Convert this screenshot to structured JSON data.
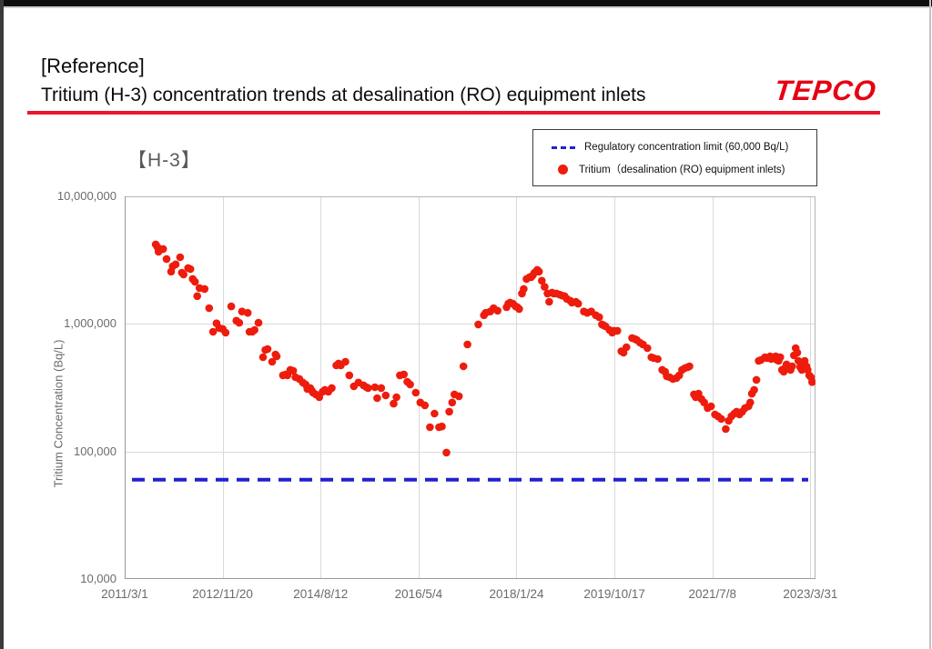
{
  "frame": {
    "top_bar_color": "#0d0d0d",
    "left_bar_color": "#3a3a3a"
  },
  "header": {
    "reference_label": "[Reference]",
    "title": "Tritium (H-3) concentration trends at desalination (RO) equipment inlets",
    "logo_text": "TEPCO",
    "accent_color": "#e8192d",
    "logo_color": "#e60012"
  },
  "legend": {
    "limit_label": "Regulatory concentration limit (60,000 Bq/L)",
    "series_label": "Tritium（desalination (RO) equipment inlets)",
    "limit_color": "#2121cf",
    "series_color": "#ee1c0c"
  },
  "chart_data": {
    "type": "scatter",
    "title": "【H-3】",
    "xlabel": "",
    "ylabel": "Tritium Concentration (Bq/L)",
    "y_scale": "log",
    "ylim": [
      10000,
      10000000
    ],
    "grid": true,
    "legend_position": "top-right",
    "regulatory_limit": 60000,
    "x_min": 2011.163,
    "x_max": 2023.33,
    "y_ticks": [
      {
        "value": 10000000,
        "label": "10,000,000"
      },
      {
        "value": 1000000,
        "label": "1,000,000"
      },
      {
        "value": 100000,
        "label": "100,000"
      },
      {
        "value": 10000,
        "label": "10,000"
      }
    ],
    "x_ticks": [
      {
        "year": 2011.163,
        "label": "2011/3/1"
      },
      {
        "year": 2012.888,
        "label": "2012/11/20"
      },
      {
        "year": 2014.614,
        "label": "2014/8/12"
      },
      {
        "year": 2016.339,
        "label": "2016/5/4"
      },
      {
        "year": 2018.064,
        "label": "2018/1/24"
      },
      {
        "year": 2019.79,
        "label": "2019/10/17"
      },
      {
        "year": 2021.515,
        "label": "2021/7/8"
      },
      {
        "year": 2023.24,
        "label": "2023/3/31"
      }
    ],
    "series": [
      {
        "name": "Tritium（desalination (RO) equipment inlets)",
        "points": [
          [
            2011.71,
            4200000
          ],
          [
            2011.74,
            4000000
          ],
          [
            2011.76,
            3680000
          ],
          [
            2011.84,
            3870000
          ],
          [
            2011.9,
            3230000
          ],
          [
            2011.98,
            2570000
          ],
          [
            2012.01,
            2830000
          ],
          [
            2012.06,
            2930000
          ],
          [
            2012.14,
            3330000
          ],
          [
            2012.17,
            2520000
          ],
          [
            2012.2,
            2440000
          ],
          [
            2012.28,
            2740000
          ],
          [
            2012.32,
            2690000
          ],
          [
            2012.36,
            2250000
          ],
          [
            2012.4,
            2140000
          ],
          [
            2012.44,
            1650000
          ],
          [
            2012.48,
            1910000
          ],
          [
            2012.57,
            1880000
          ],
          [
            2012.65,
            1330000
          ],
          [
            2012.72,
            868000
          ],
          [
            2012.78,
            1010000
          ],
          [
            2012.83,
            927000
          ],
          [
            2012.89,
            912000
          ],
          [
            2012.94,
            854000
          ],
          [
            2013.04,
            1370000
          ],
          [
            2013.13,
            1060000
          ],
          [
            2013.18,
            1020000
          ],
          [
            2013.23,
            1250000
          ],
          [
            2013.33,
            1220000
          ],
          [
            2013.36,
            868000
          ],
          [
            2013.41,
            868000
          ],
          [
            2013.45,
            897000
          ],
          [
            2013.52,
            1020000
          ],
          [
            2013.6,
            548000
          ],
          [
            2013.64,
            625000
          ],
          [
            2013.68,
            635000
          ],
          [
            2013.76,
            505000
          ],
          [
            2013.82,
            576000
          ],
          [
            2013.84,
            557000
          ],
          [
            2013.95,
            395000
          ],
          [
            2014.0,
            402000
          ],
          [
            2014.03,
            395000
          ],
          [
            2014.08,
            436000
          ],
          [
            2014.13,
            429000
          ],
          [
            2014.17,
            382000
          ],
          [
            2014.24,
            370000
          ],
          [
            2014.3,
            347000
          ],
          [
            2014.35,
            335000
          ],
          [
            2014.38,
            309000
          ],
          [
            2014.43,
            314000
          ],
          [
            2014.46,
            299000
          ],
          [
            2014.48,
            289000
          ],
          [
            2014.53,
            280000
          ],
          [
            2014.59,
            266000
          ],
          [
            2014.65,
            294000
          ],
          [
            2014.69,
            304000
          ],
          [
            2014.75,
            294000
          ],
          [
            2014.81,
            314000
          ],
          [
            2014.89,
            473000
          ],
          [
            2014.93,
            489000
          ],
          [
            2014.97,
            473000
          ],
          [
            2015.05,
            505000
          ],
          [
            2015.12,
            395000
          ],
          [
            2015.2,
            324000
          ],
          [
            2015.28,
            347000
          ],
          [
            2015.37,
            330000
          ],
          [
            2015.42,
            319000
          ],
          [
            2015.45,
            314000
          ],
          [
            2015.57,
            319000
          ],
          [
            2015.61,
            262000
          ],
          [
            2015.68,
            314000
          ],
          [
            2015.76,
            275000
          ],
          [
            2015.9,
            237000
          ],
          [
            2015.95,
            266000
          ],
          [
            2016.01,
            395000
          ],
          [
            2016.08,
            402000
          ],
          [
            2016.14,
            352000
          ],
          [
            2016.19,
            335000
          ],
          [
            2016.29,
            289000
          ],
          [
            2016.37,
            242000
          ],
          [
            2016.45,
            230000
          ],
          [
            2016.54,
            155000
          ],
          [
            2016.62,
            198000
          ],
          [
            2016.7,
            155000
          ],
          [
            2016.75,
            157000
          ],
          [
            2016.83,
            98000
          ],
          [
            2016.88,
            205000
          ],
          [
            2016.93,
            242000
          ],
          [
            2016.97,
            280000
          ],
          [
            2017.05,
            271000
          ],
          [
            2017.13,
            465000
          ],
          [
            2017.2,
            690000
          ],
          [
            2017.39,
            990000
          ],
          [
            2017.49,
            1170000
          ],
          [
            2017.52,
            1220000
          ],
          [
            2017.6,
            1250000
          ],
          [
            2017.66,
            1330000
          ],
          [
            2017.73,
            1270000
          ],
          [
            2017.89,
            1350000
          ],
          [
            2017.92,
            1440000
          ],
          [
            2017.95,
            1470000
          ],
          [
            2018.0,
            1440000
          ],
          [
            2018.05,
            1370000
          ],
          [
            2018.08,
            1350000
          ],
          [
            2018.11,
            1310000
          ],
          [
            2018.16,
            1730000
          ],
          [
            2018.19,
            1880000
          ],
          [
            2018.24,
            2250000
          ],
          [
            2018.29,
            2320000
          ],
          [
            2018.32,
            2320000
          ],
          [
            2018.35,
            2400000
          ],
          [
            2018.38,
            2520000
          ],
          [
            2018.43,
            2650000
          ],
          [
            2018.46,
            2570000
          ],
          [
            2018.51,
            2180000
          ],
          [
            2018.56,
            1950000
          ],
          [
            2018.61,
            1730000
          ],
          [
            2018.64,
            1490000
          ],
          [
            2018.69,
            1760000
          ],
          [
            2018.72,
            1730000
          ],
          [
            2018.77,
            1730000
          ],
          [
            2018.82,
            1700000
          ],
          [
            2018.86,
            1670000
          ],
          [
            2018.91,
            1650000
          ],
          [
            2018.95,
            1570000
          ],
          [
            2019.01,
            1520000
          ],
          [
            2019.04,
            1470000
          ],
          [
            2019.11,
            1490000
          ],
          [
            2019.15,
            1440000
          ],
          [
            2019.25,
            1250000
          ],
          [
            2019.31,
            1220000
          ],
          [
            2019.38,
            1250000
          ],
          [
            2019.46,
            1170000
          ],
          [
            2019.52,
            1130000
          ],
          [
            2019.57,
            990000
          ],
          [
            2019.6,
            975000
          ],
          [
            2019.63,
            958000
          ],
          [
            2019.7,
            897000
          ],
          [
            2019.75,
            854000
          ],
          [
            2019.78,
            883000
          ],
          [
            2019.84,
            883000
          ],
          [
            2019.91,
            611000
          ],
          [
            2019.95,
            595000
          ],
          [
            2020.0,
            656000
          ],
          [
            2020.1,
            774000
          ],
          [
            2020.15,
            761000
          ],
          [
            2020.18,
            749000
          ],
          [
            2020.24,
            712000
          ],
          [
            2020.29,
            690000
          ],
          [
            2020.37,
            646000
          ],
          [
            2020.44,
            548000
          ],
          [
            2020.48,
            539000
          ],
          [
            2020.55,
            530000
          ],
          [
            2020.63,
            436000
          ],
          [
            2020.68,
            422000
          ],
          [
            2020.71,
            389000
          ],
          [
            2020.76,
            382000
          ],
          [
            2020.82,
            370000
          ],
          [
            2020.88,
            376000
          ],
          [
            2020.93,
            395000
          ],
          [
            2020.98,
            436000
          ],
          [
            2021.03,
            450000
          ],
          [
            2021.08,
            458000
          ],
          [
            2021.11,
            465000
          ],
          [
            2021.19,
            280000
          ],
          [
            2021.22,
            266000
          ],
          [
            2021.27,
            284000
          ],
          [
            2021.32,
            258000
          ],
          [
            2021.37,
            242000
          ],
          [
            2021.43,
            219000
          ],
          [
            2021.49,
            226000
          ],
          [
            2021.56,
            195000
          ],
          [
            2021.61,
            189000
          ],
          [
            2021.67,
            180000
          ],
          [
            2021.75,
            150000
          ],
          [
            2021.8,
            174000
          ],
          [
            2021.85,
            189000
          ],
          [
            2021.9,
            198000
          ],
          [
            2021.94,
            205000
          ],
          [
            2021.99,
            195000
          ],
          [
            2022.04,
            205000
          ],
          [
            2022.09,
            219000
          ],
          [
            2022.15,
            226000
          ],
          [
            2022.18,
            242000
          ],
          [
            2022.21,
            284000
          ],
          [
            2022.25,
            304000
          ],
          [
            2022.29,
            364000
          ],
          [
            2022.33,
            513000
          ],
          [
            2022.37,
            522000
          ],
          [
            2022.44,
            548000
          ],
          [
            2022.47,
            539000
          ],
          [
            2022.53,
            557000
          ],
          [
            2022.55,
            530000
          ],
          [
            2022.6,
            548000
          ],
          [
            2022.63,
            557000
          ],
          [
            2022.65,
            522000
          ],
          [
            2022.68,
            513000
          ],
          [
            2022.71,
            548000
          ],
          [
            2022.74,
            436000
          ],
          [
            2022.77,
            422000
          ],
          [
            2022.79,
            450000
          ],
          [
            2022.82,
            481000
          ],
          [
            2022.85,
            450000
          ],
          [
            2022.89,
            436000
          ],
          [
            2022.92,
            465000
          ],
          [
            2022.95,
            566000
          ],
          [
            2022.98,
            646000
          ],
          [
            2023.01,
            595000
          ],
          [
            2023.03,
            513000
          ],
          [
            2023.06,
            458000
          ],
          [
            2023.09,
            436000
          ],
          [
            2023.11,
            481000
          ],
          [
            2023.14,
            513000
          ],
          [
            2023.17,
            465000
          ],
          [
            2023.19,
            436000
          ],
          [
            2023.22,
            395000
          ],
          [
            2023.25,
            382000
          ],
          [
            2023.27,
            350000
          ]
        ]
      }
    ]
  }
}
